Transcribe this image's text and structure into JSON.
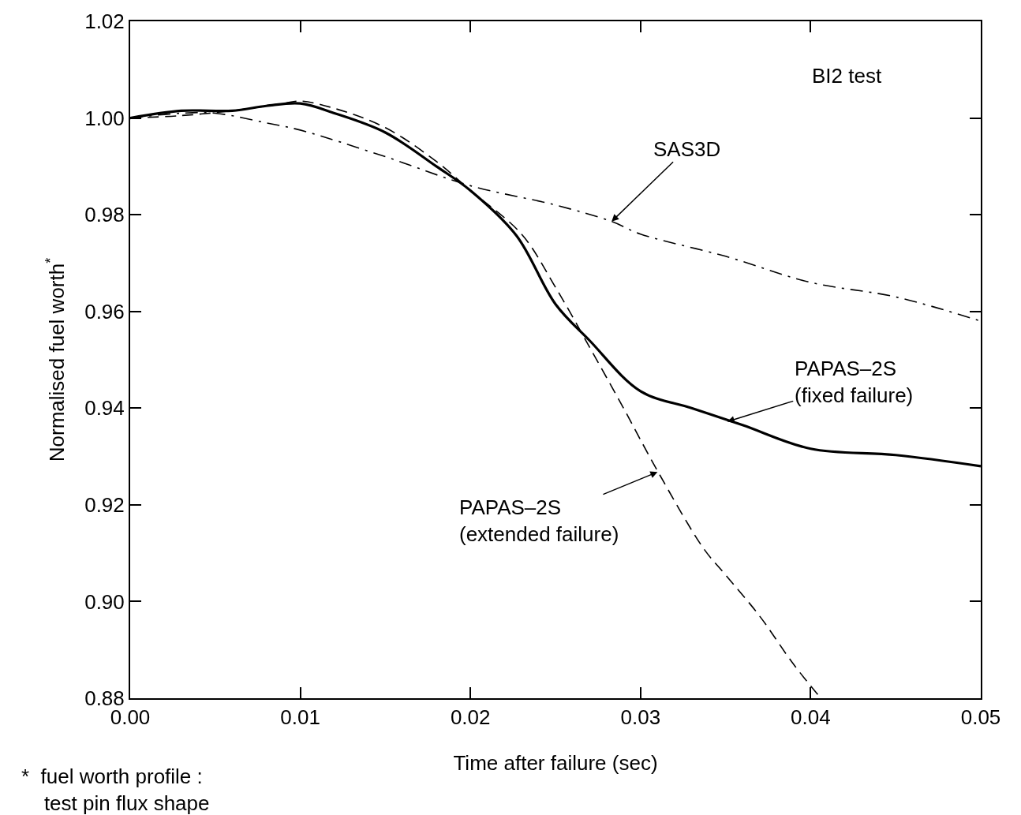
{
  "chart_data": {
    "type": "line",
    "xlabel": "Time after failure (sec)",
    "ylabel": "Normalised fuel worth$^{*}$",
    "xlim": [
      0,
      0.05
    ],
    "ylim": [
      0.88,
      1.02
    ],
    "xticks": [
      {
        "value": 0,
        "label": "0.00"
      },
      {
        "value": 0.01,
        "label": "0.01"
      },
      {
        "value": 0.02,
        "label": "0.02"
      },
      {
        "value": 0.03,
        "label": "0.03"
      },
      {
        "value": 0.04,
        "label": "0.04"
      },
      {
        "value": 0.05,
        "label": "0.05"
      }
    ],
    "yticks": [
      {
        "value": 0.88,
        "label": "0.88"
      },
      {
        "value": 0.9,
        "label": "0.90"
      },
      {
        "value": 0.92,
        "label": "0.92"
      },
      {
        "value": 0.94,
        "label": "0.94"
      },
      {
        "value": 0.96,
        "label": "0.96"
      },
      {
        "value": 0.98,
        "label": "0.98"
      },
      {
        "value": 1.0,
        "label": "1.00"
      },
      {
        "value": 1.02,
        "label": "1.02"
      }
    ],
    "series": [
      {
        "color": "#000000",
        "line_style": "solid",
        "x": [
          0,
          0.003,
          0.006,
          0.008,
          0.01,
          0.012,
          0.015,
          0.018,
          0.02,
          0.0227,
          0.025,
          0.027,
          0.03,
          0.033,
          0.036,
          0.04,
          0.045,
          0.05
        ],
        "values": [
          1.0,
          1.0015,
          1.0015,
          1.0025,
          1.003,
          1.001,
          0.997,
          0.99,
          0.985,
          0.9757,
          0.9615,
          0.954,
          0.9435,
          0.94,
          0.9365,
          0.9316,
          0.9303,
          0.928
        ]
      },
      {
        "color": "#000000",
        "line_style": "dashed",
        "x": [
          0,
          0.003,
          0.006,
          0.009,
          0.01,
          0.012,
          0.015,
          0.018,
          0.02,
          0.023,
          0.025,
          0.0271,
          0.029,
          0.031,
          0.0337,
          0.035,
          0.037,
          0.039,
          0.0406
        ],
        "values": [
          1.0,
          1.0005,
          1.0015,
          1.003,
          1.0035,
          1.002,
          0.998,
          0.991,
          0.985,
          0.976,
          0.965,
          0.952,
          0.94,
          0.927,
          0.911,
          0.9055,
          0.897,
          0.887,
          0.88
        ]
      },
      {
        "color": "#000000",
        "line_style": "dashdot",
        "x": [
          0,
          0.003,
          0.005,
          0.008,
          0.01,
          0.015,
          0.02,
          0.025,
          0.0283,
          0.03,
          0.035,
          0.04,
          0.045,
          0.05
        ],
        "values": [
          1.0,
          1.001,
          1.001,
          0.999,
          0.9975,
          0.992,
          0.986,
          0.982,
          0.9786,
          0.976,
          0.9714,
          0.966,
          0.963,
          0.958
        ]
      }
    ],
    "annotations": [
      "BI2 test",
      {
        "text": "SAS3D",
        "x": 0.0283,
        "y": 0.9786
      },
      {
        "text": "PAPAS–2S\n(fixed failure)",
        "x": 0.0351,
        "y": 0.9372
      },
      {
        "text": "PAPAS–2S\n(extended failure)",
        "x": 0.031,
        "y": 0.9268
      },
      "*  fuel worth profile :\n    test pin flux shape"
    ]
  }
}
